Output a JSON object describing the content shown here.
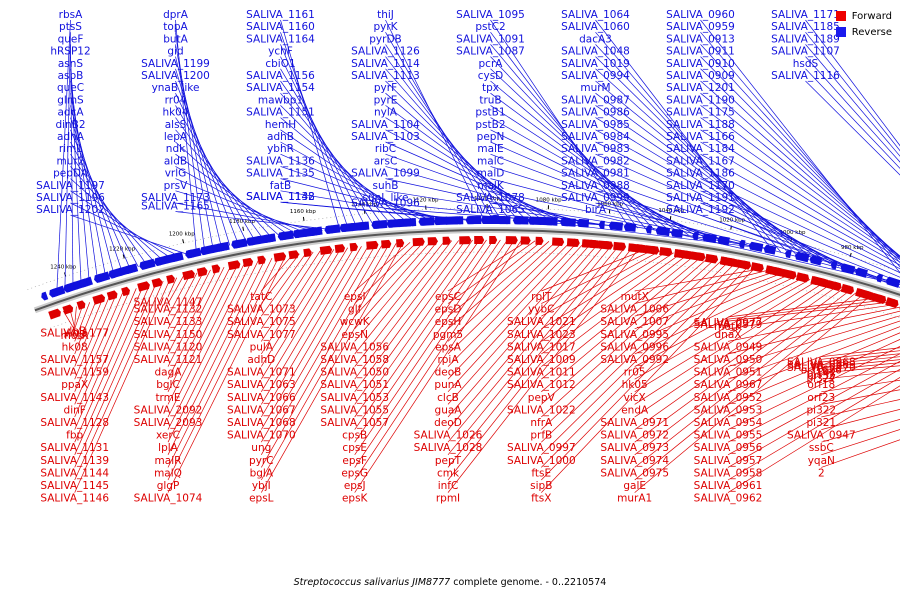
{
  "colors": {
    "forward": "#dd0000",
    "reverse": "#1111dd",
    "ring_dark": "#555555",
    "ring_light": "#cccccc"
  },
  "legend": [
    {
      "label": "Forward",
      "color": "#ee0000"
    },
    {
      "label": "Reverse",
      "color": "#1a1aee"
    }
  ],
  "caption": {
    "organism": "Streptococcus salivarius JIM8777",
    "rest": " complete genome. - 0..2210574"
  },
  "scale_ticks": [
    "1240 kbp",
    "1220 kbp",
    "1200 kbp",
    "1180 kbp",
    "1160 kbp",
    "1140 kbp",
    "1120 kbp",
    "1100 kbp",
    "1080 kbp",
    "1060 kbp",
    "1040 kbp",
    "1020 kbp",
    "1000 kbp",
    "980 kbp",
    "960 kbp",
    "940 kbp",
    "920 kbp",
    "900 kbp"
  ],
  "reverse_labels": [
    "rbsA",
    "ptsS",
    "queF",
    "hRSP12",
    "asnS",
    "aspB",
    "queC",
    "glmS",
    "adcA",
    "dinB2",
    "adhA",
    "rimL",
    "mur2",
    "pepDA",
    "SALIVA_1197",
    "SALIVA_1196",
    "SALIVA_1202",
    "dprA",
    "topA",
    "butA",
    "gid",
    "SALIVA_1199",
    "SALIVA_1200",
    "ynaB like",
    "rr04",
    "hk04",
    "alsS",
    "lepA",
    "ndk",
    "aldB",
    "vrlG",
    "prsV",
    "SALIVA_1173",
    "SALIVA_1165",
    "SALIVA_1161",
    "SALIVA_1160",
    "SALIVA_1164",
    "ychF",
    "cbiO1",
    "SALIVA_1156",
    "SALIVA_1154",
    "mawbp1",
    "SALIVA_1151",
    "hemH",
    "adhB",
    "ybhR",
    "SALIVA_1136",
    "SALIVA_1135",
    "fatB",
    "SALIVA_1138",
    "SALIVA_1142",
    "thiJ",
    "pyrK",
    "pyrDB",
    "SALIVA_1126",
    "SALIVA_1114",
    "SALIVA_1113",
    "pyrF",
    "pyrE",
    "nylA",
    "SALIVA_1104",
    "SALIVA_1103",
    "ribC",
    "arsC",
    "SALIVA_1099",
    "suhB",
    "sunL like",
    "SALIVA_1096",
    "SALIVA_1095",
    "pstC2",
    "SALIVA_1091",
    "SALIVA_1087",
    "pcrA",
    "cysD",
    "tpx",
    "truB",
    "pstB1",
    "pstB2",
    "pepN",
    "malE",
    "malC",
    "malD",
    "malK",
    "SALIVA_1078",
    "SALIVA_1065",
    "SALIVA_1064",
    "SALIVA_1060",
    "dacA3",
    "SALIVA_1048",
    "SALIVA_1019",
    "SALIVA_0994",
    "murM",
    "SALIVA_0987",
    "SALIVA_0986",
    "SALIVA_0985",
    "SALIVA_0984",
    "SALIVA_0983",
    "SALIVA_0982",
    "SALIVA_0981",
    "SALIVA_0988",
    "SALIVA_0999",
    "birA",
    "SALIVA_0960",
    "SALIVA_0959",
    "SALIVA_0913",
    "SALIVA_0911",
    "SALIVA_0910",
    "SALIVA_0909",
    "SALIVA_1201",
    "SALIVA_1190",
    "SALIVA_1175",
    "SALIVA_1188",
    "SALIVA_1166",
    "SALIVA_1184",
    "SALIVA_1167",
    "SALIVA_1186",
    "SALIVA_1170",
    "SALIVA_1191",
    "SALIVA_1192",
    "SALIVA_1171",
    "SALIVA_1185",
    "SALIVA_1189",
    "SALIVA_1107",
    "hsdS",
    "SALIVA_1116"
  ],
  "forward_labels": [
    "metR",
    "SALIVA_1177",
    "ylbB",
    "rr08",
    "hk08",
    "SALIVA_1157",
    "SALIVA_1159",
    "ppaX",
    "SALIVA_1143",
    "dinF",
    "SALIVA_1128",
    "fbp",
    "SALIVA_1131",
    "SALIVA_1139",
    "SALIVA_1144",
    "SALIVA_1145",
    "SALIVA_1146",
    "SALIVA_1147",
    "SALIVA_1132",
    "SALIVA_1133",
    "SALIVA_1150",
    "SALIVA_1120",
    "SALIVA_1121",
    "dagA",
    "bglC",
    "trmE",
    "SALIVA_2092",
    "SALIVA_2093",
    "xerC",
    "lplA",
    "malR",
    "malQ",
    "glgP",
    "SALIVA_1074",
    "tatC",
    "SALIVA_1073",
    "SALIVA_1075",
    "SALIVA_1077",
    "pulA",
    "adhD",
    "SALIVA_1071",
    "SALIVA_1063",
    "SALIVA_1066",
    "SALIVA_1067",
    "SALIVA_1068",
    "SALIVA_1070",
    "ung",
    "pyrC",
    "bglA",
    "ybjI",
    "epsL",
    "epsI",
    "glf",
    "wcwK",
    "epsN",
    "SALIVA_1056",
    "SALIVA_1058",
    "SALIVA_1050",
    "SALIVA_1051",
    "SALIVA_1053",
    "SALIVA_1055",
    "SALIVA_1057",
    "cpsB",
    "cpsE",
    "epsF",
    "epsG",
    "epsJ",
    "epsK",
    "epsC",
    "epsD",
    "epsH",
    "pgm5",
    "epsA",
    "rpiA",
    "deoB",
    "punA",
    "clcB",
    "guaA",
    "deoD",
    "SALIVA_1026",
    "SALIVA_1028",
    "pepT",
    "cmk",
    "infC",
    "rpmI",
    "rplT",
    "yybC",
    "SALIVA_1021",
    "SALIVA_1023",
    "SALIVA_1017",
    "SALIVA_1009",
    "SALIVA_1011",
    "SALIVA_1012",
    "pepV",
    "SALIVA_1022",
    "nfrA",
    "prfB",
    "SALIVA_0997",
    "SALIVA_1000",
    "ftsE",
    "sipB",
    "ftsX",
    "mutX",
    "SALIVA_1006",
    "SALIVA_1007",
    "SALIVA_0995",
    "SALIVA_0996",
    "SALIVA_0992",
    "rr05",
    "hk05",
    "vicX",
    "endA",
    "SALIVA_0971",
    "SALIVA_0972",
    "SALIVA_0973",
    "SALIVA_0974",
    "SALIVA_0975",
    "galE",
    "murA1",
    "SALIVA_0977",
    "SALIVA_0979",
    "metK",
    "dnaX",
    "SALIVA_0949",
    "SALIVA_0950",
    "SALIVA_0951",
    "SALIVA_0967",
    "SALIVA_0952",
    "SALIVA_0953",
    "SALIVA_0954",
    "SALIVA_0955",
    "SALIVA_0956",
    "SALIVA_0957",
    "SALIVA_0958",
    "SALIVA_0961",
    "SALIVA_0962",
    "SALIVA_0968",
    "SALIVA_0969",
    "SALIVA_0970",
    "orf1626",
    "pi142",
    "orf32",
    "pi327",
    "orf18",
    "orf23",
    "pi322",
    "pi321",
    "SALIVA_0947",
    "ssbC",
    "yqaN",
    "2"
  ]
}
